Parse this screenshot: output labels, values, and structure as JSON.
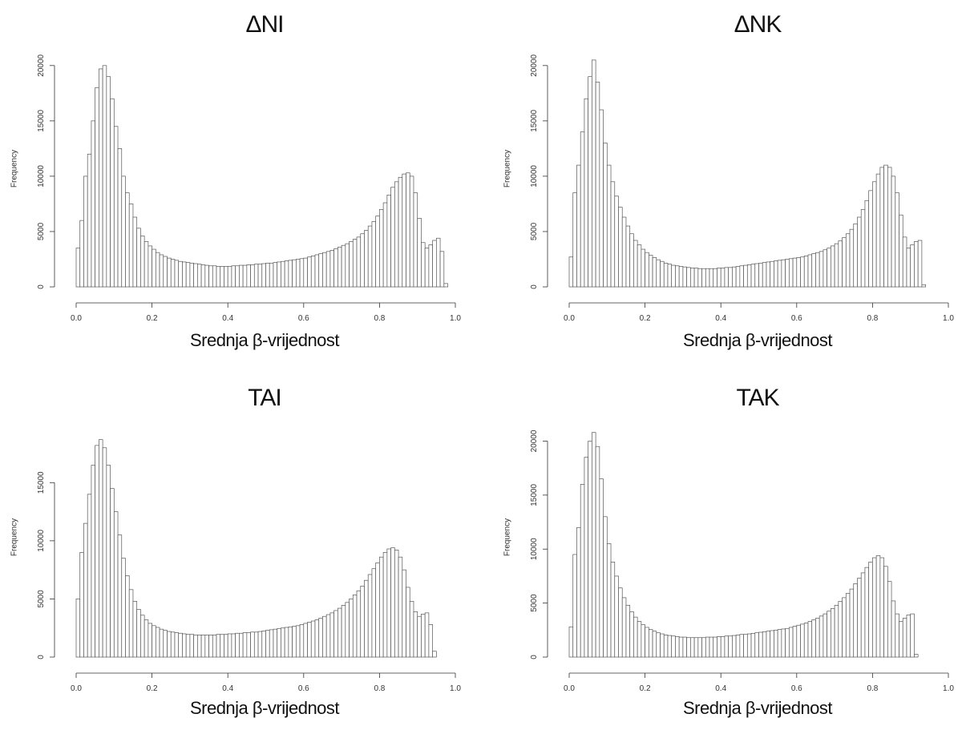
{
  "chart_data": [
    {
      "type": "bar",
      "title": "ΔNI",
      "xlabel": "Srednja β-vrijednost",
      "ylabel": "Frequency",
      "xlim": [
        0.0,
        1.0
      ],
      "ylim": [
        0,
        21000
      ],
      "xticks": [
        "0.0",
        "0.2",
        "0.4",
        "0.6",
        "0.8",
        "1.0"
      ],
      "yticks": [
        "0",
        "5000",
        "10000",
        "15000",
        "20000"
      ],
      "bin_width": 0.01,
      "values": [
        3500,
        6000,
        10000,
        12000,
        15000,
        18000,
        19700,
        20000,
        19000,
        17000,
        14500,
        12500,
        10000,
        8500,
        7500,
        6300,
        5300,
        4600,
        4100,
        3700,
        3400,
        3100,
        2900,
        2750,
        2600,
        2500,
        2400,
        2300,
        2250,
        2200,
        2150,
        2100,
        2050,
        2000,
        1950,
        1900,
        1900,
        1850,
        1850,
        1850,
        1850,
        1900,
        1900,
        1950,
        1950,
        2000,
        2000,
        2050,
        2050,
        2100,
        2150,
        2150,
        2200,
        2250,
        2300,
        2350,
        2400,
        2450,
        2500,
        2550,
        2600,
        2700,
        2800,
        2900,
        3000,
        3100,
        3200,
        3300,
        3450,
        3600,
        3750,
        3900,
        4100,
        4300,
        4500,
        4800,
        5100,
        5500,
        5900,
        6400,
        7000,
        7600,
        8300,
        9000,
        9500,
        9900,
        10200,
        10300,
        10000,
        8500,
        6200,
        4000,
        3500,
        3800,
        4200,
        4400,
        3200,
        300
      ]
    },
    {
      "type": "bar",
      "title": "ΔNK",
      "xlabel": "Srednja β-vrijednost",
      "ylabel": "Frequency",
      "xlim": [
        0.0,
        1.0
      ],
      "ylim": [
        0,
        21000
      ],
      "xticks": [
        "0.0",
        "0.2",
        "0.4",
        "0.6",
        "0.8",
        "1.0"
      ],
      "yticks": [
        "0",
        "5000",
        "10000",
        "15000",
        "20000"
      ],
      "bin_width": 0.01,
      "values": [
        2700,
        8500,
        11000,
        14000,
        17000,
        19000,
        20500,
        18500,
        16000,
        13000,
        11000,
        9500,
        8200,
        7200,
        6300,
        5500,
        4800,
        4200,
        3800,
        3400,
        3100,
        2850,
        2650,
        2450,
        2300,
        2150,
        2050,
        1950,
        1900,
        1850,
        1800,
        1750,
        1700,
        1700,
        1650,
        1650,
        1650,
        1650,
        1650,
        1700,
        1700,
        1750,
        1750,
        1800,
        1850,
        1900,
        1950,
        2000,
        2050,
        2100,
        2150,
        2200,
        2250,
        2300,
        2350,
        2400,
        2450,
        2500,
        2550,
        2600,
        2650,
        2700,
        2800,
        2900,
        3000,
        3100,
        3200,
        3350,
        3500,
        3700,
        3900,
        4150,
        4450,
        4800,
        5200,
        5700,
        6300,
        7000,
        7800,
        8700,
        9500,
        10200,
        10800,
        11000,
        10800,
        10000,
        8500,
        6500,
        4500,
        3500,
        3800,
        4100,
        4200,
        200
      ]
    },
    {
      "type": "bar",
      "title": "TAI",
      "xlabel": "Srednja β-vrijednost",
      "ylabel": "Frequency",
      "xlim": [
        0.0,
        1.0
      ],
      "ylim": [
        0,
        19500
      ],
      "xticks": [
        "0.0",
        "0.2",
        "0.4",
        "0.6",
        "0.8",
        "1.0"
      ],
      "yticks": [
        "0",
        "5000",
        "10000",
        "15000"
      ],
      "bin_width": 0.01,
      "values": [
        5000,
        9000,
        11500,
        14000,
        16500,
        18200,
        18700,
        18000,
        16500,
        14500,
        12500,
        10500,
        8500,
        7000,
        5800,
        4800,
        4100,
        3600,
        3200,
        2900,
        2700,
        2550,
        2400,
        2300,
        2200,
        2150,
        2100,
        2050,
        2000,
        1950,
        1950,
        1900,
        1900,
        1900,
        1900,
        1900,
        1900,
        1950,
        1950,
        1950,
        2000,
        2000,
        2050,
        2050,
        2100,
        2100,
        2150,
        2150,
        2200,
        2250,
        2300,
        2350,
        2400,
        2450,
        2500,
        2550,
        2600,
        2650,
        2700,
        2800,
        2900,
        3000,
        3100,
        3200,
        3350,
        3500,
        3650,
        3800,
        4000,
        4200,
        4450,
        4700,
        5000,
        5350,
        5700,
        6100,
        6600,
        7100,
        7600,
        8100,
        8600,
        9000,
        9300,
        9400,
        9200,
        8600,
        7500,
        6000,
        4800,
        3900,
        3500,
        3700,
        3800,
        2800,
        500
      ]
    },
    {
      "type": "bar",
      "title": "TAK",
      "xlabel": "Srednja β-vrijednost",
      "ylabel": "Frequency",
      "xlim": [
        0.0,
        1.0
      ],
      "ylim": [
        0,
        21000
      ],
      "xticks": [
        "0.0",
        "0.2",
        "0.4",
        "0.6",
        "0.8",
        "1.0"
      ],
      "yticks": [
        "0",
        "5000",
        "10000",
        "15000",
        "20000"
      ],
      "bin_width": 0.01,
      "values": [
        2800,
        9500,
        12000,
        16000,
        18500,
        20000,
        20800,
        19500,
        16500,
        13000,
        10500,
        8800,
        7500,
        6400,
        5500,
        4800,
        4200,
        3700,
        3300,
        3000,
        2750,
        2550,
        2400,
        2250,
        2150,
        2050,
        2000,
        1950,
        1900,
        1850,
        1850,
        1800,
        1800,
        1800,
        1800,
        1800,
        1850,
        1850,
        1850,
        1900,
        1900,
        1950,
        1950,
        2000,
        2050,
        2100,
        2100,
        2150,
        2200,
        2250,
        2300,
        2350,
        2400,
        2450,
        2500,
        2550,
        2600,
        2650,
        2750,
        2850,
        2950,
        3050,
        3150,
        3300,
        3450,
        3600,
        3800,
        4000,
        4250,
        4500,
        4800,
        5150,
        5500,
        5900,
        6300,
        6800,
        7300,
        7800,
        8300,
        8800,
        9200,
        9400,
        9200,
        8400,
        7000,
        5200,
        4000,
        3300,
        3600,
        3900,
        4000,
        250
      ]
    }
  ]
}
